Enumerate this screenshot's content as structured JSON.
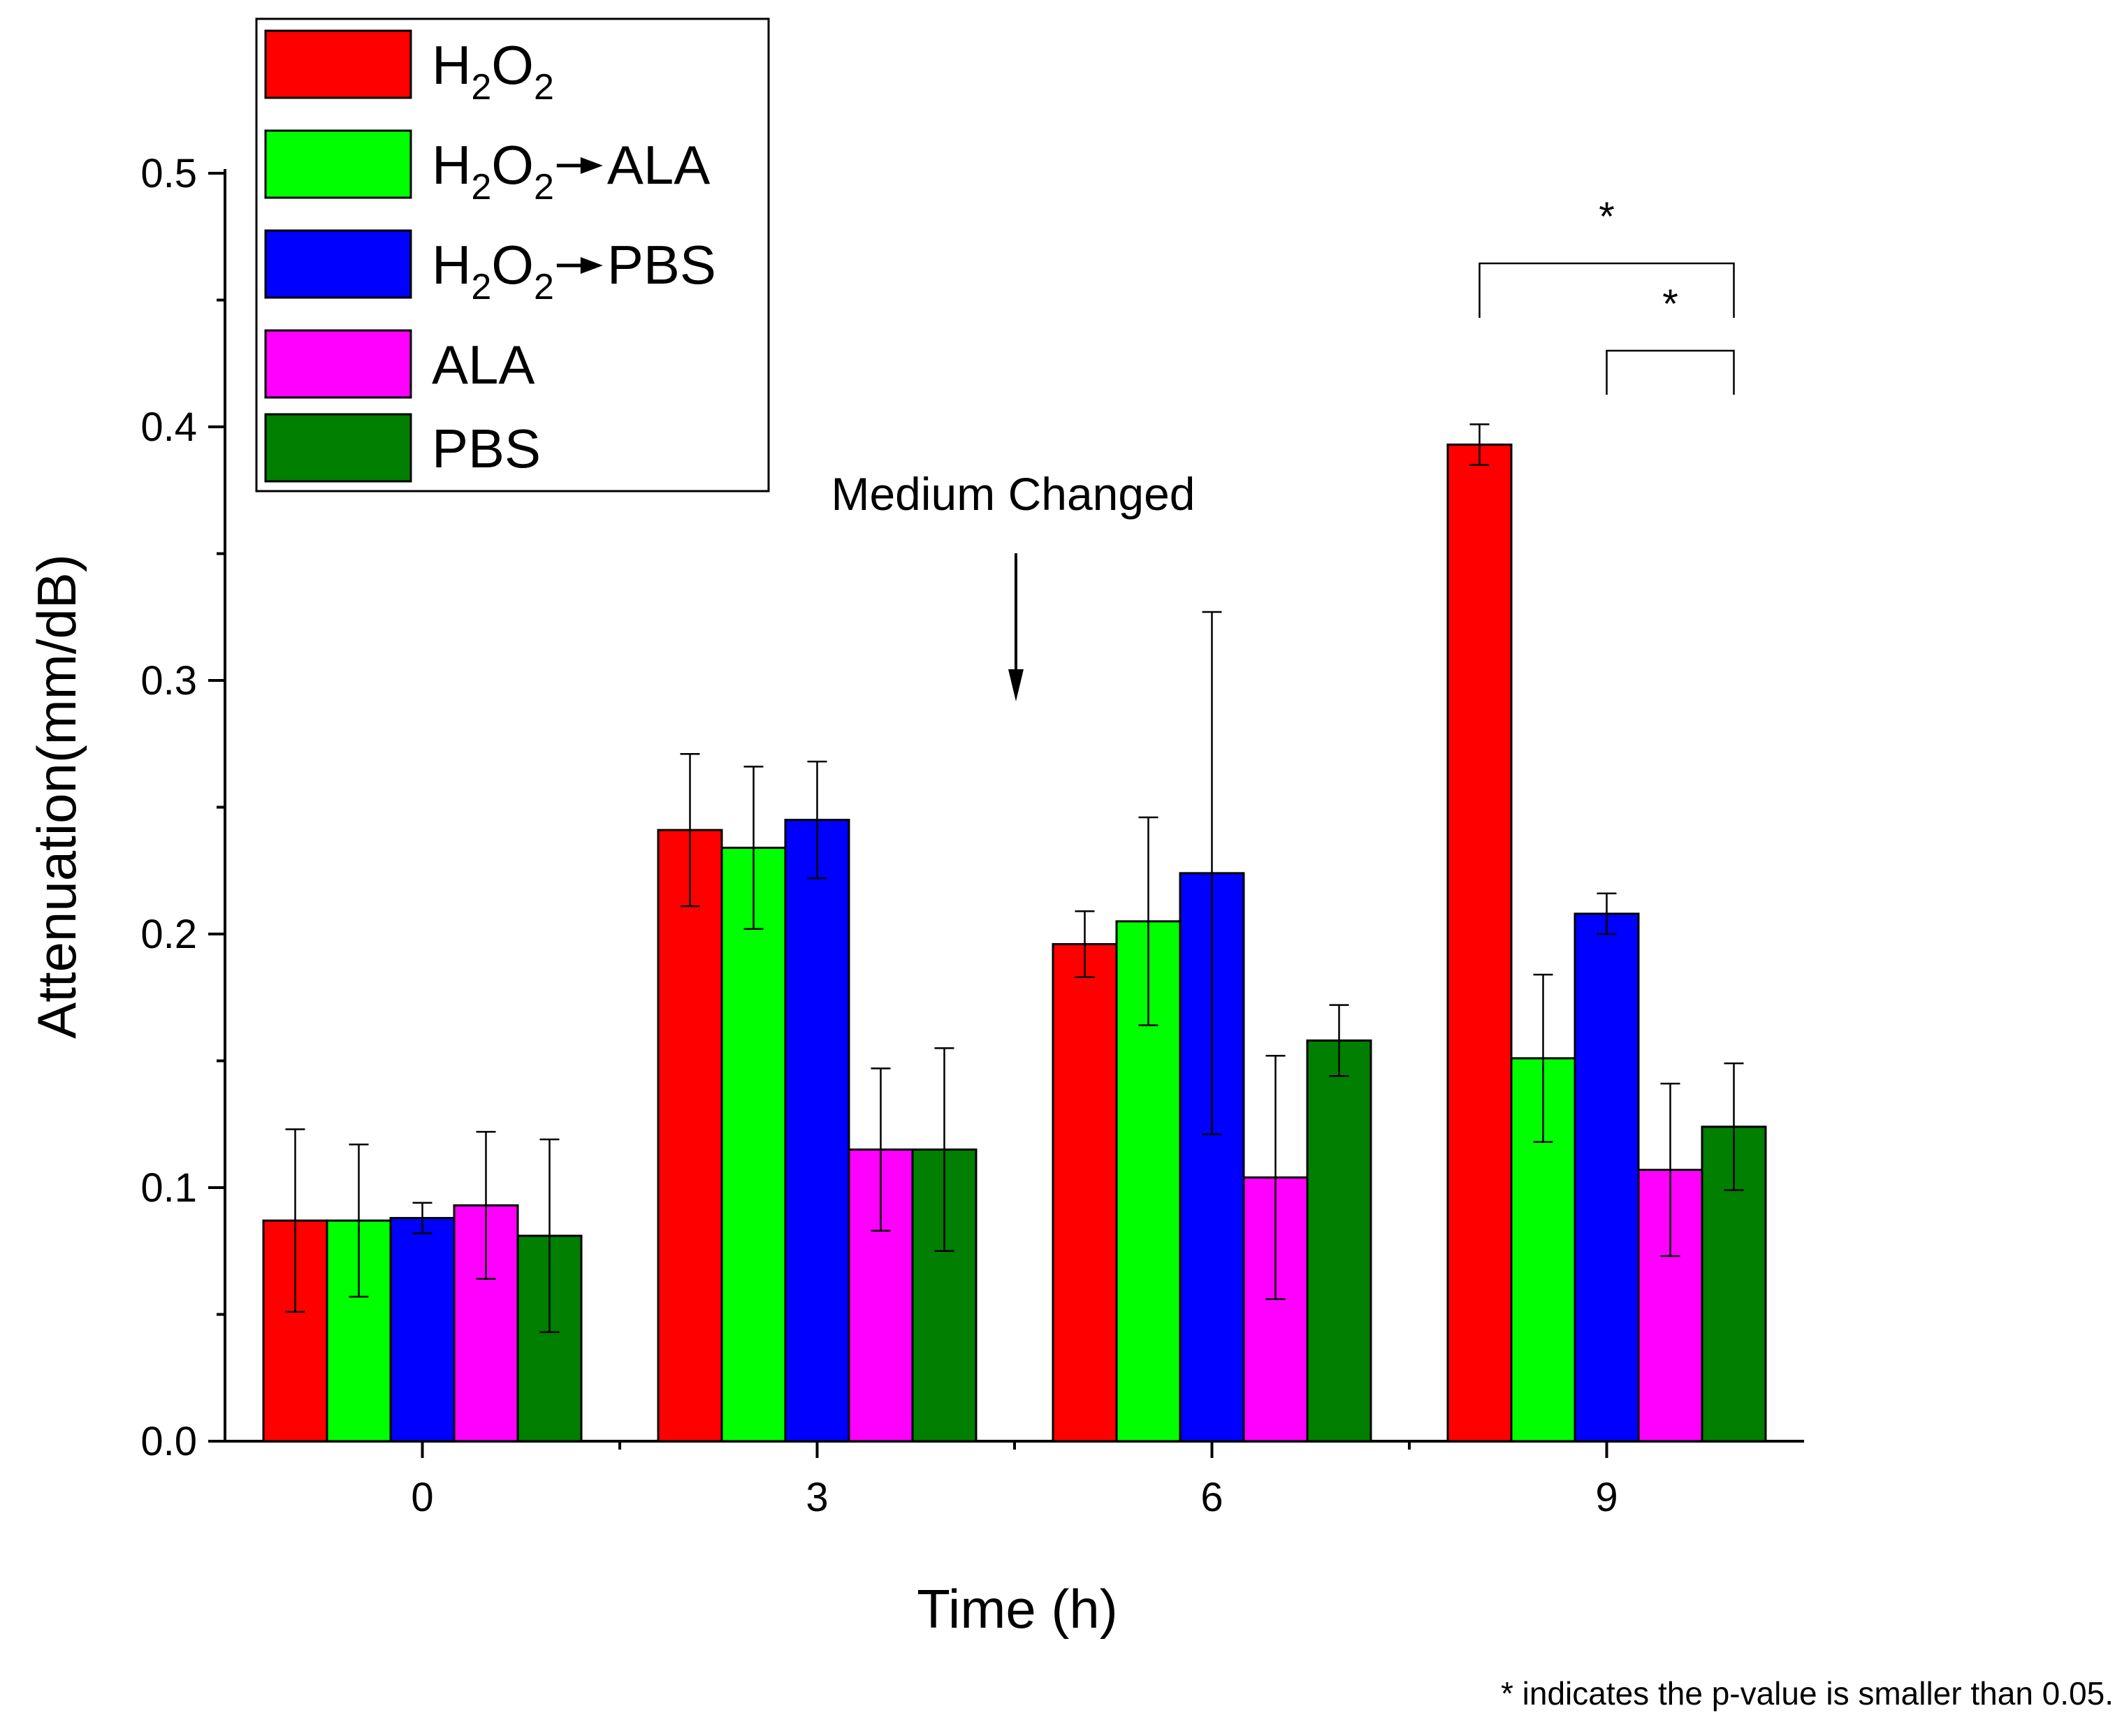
{
  "chart_data": {
    "type": "bar",
    "xlabel": "Time (h)",
    "ylabel": "Attenuation(mm/dB)",
    "ylim": [
      0.0,
      0.5
    ],
    "yticks": [
      "0.0",
      "0.1",
      "0.2",
      "0.3",
      "0.4",
      "0.5"
    ],
    "categories": [
      "0",
      "3",
      "6",
      "9"
    ],
    "series": [
      {
        "name": "H2O2",
        "label_main": "H",
        "label_sub1": "2",
        "label_mid": "O",
        "label_sub2": "2",
        "label_tail": "",
        "color": "#ff0000",
        "values": [
          0.087,
          0.241,
          0.196,
          0.393
        ],
        "errors": [
          0.036,
          0.03,
          0.013,
          0.008
        ]
      },
      {
        "name": "H2O2→ALA",
        "label_main": "H",
        "label_sub1": "2",
        "label_mid": "O",
        "label_sub2": "2",
        "label_tail": "ALA",
        "color": "#00ff00",
        "values": [
          0.087,
          0.234,
          0.205,
          0.151
        ],
        "errors": [
          0.03,
          0.032,
          0.041,
          0.033
        ]
      },
      {
        "name": "H2O2→PBS",
        "label_main": "H",
        "label_sub1": "2",
        "label_mid": "O",
        "label_sub2": "2",
        "label_tail": "PBS",
        "color": "#0000ff",
        "values": [
          0.088,
          0.245,
          0.224,
          0.208
        ],
        "errors": [
          0.006,
          0.023,
          0.103,
          0.008
        ]
      },
      {
        "name": "ALA",
        "label_main": "ALA",
        "label_sub1": "",
        "label_mid": "",
        "label_sub2": "",
        "label_tail": "",
        "color": "#ff00ff",
        "values": [
          0.093,
          0.115,
          0.104,
          0.107
        ],
        "errors": [
          0.029,
          0.032,
          0.048,
          0.034
        ]
      },
      {
        "name": "PBS",
        "label_main": "PBS",
        "label_sub1": "",
        "label_mid": "",
        "label_sub2": "",
        "label_tail": "",
        "color": "#007f00",
        "values": [
          0.081,
          0.115,
          0.158,
          0.124
        ],
        "errors": [
          0.038,
          0.04,
          0.014,
          0.025
        ]
      }
    ],
    "annotation": "Medium Changed",
    "significance": [
      {
        "label": "*",
        "category": "9",
        "from_series": 0,
        "to_series": 4
      },
      {
        "label": "*",
        "category": "9",
        "from_series": 2,
        "to_series": 4
      }
    ],
    "legend_position": "top-left",
    "footnote": "* indicates the p-value is smaller than 0.05."
  }
}
